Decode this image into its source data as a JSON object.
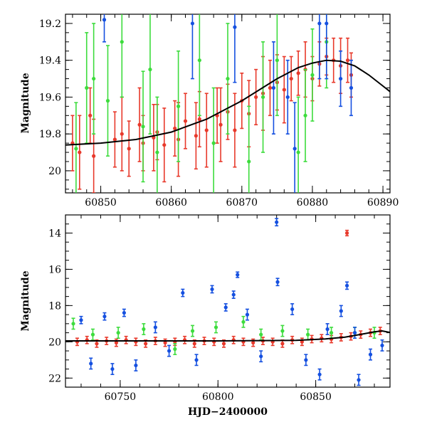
{
  "colors": {
    "red": "#e8392b",
    "green": "#3ddc3d",
    "blue": "#1550e0",
    "model": "#000000"
  },
  "chart_data": [
    {
      "type": "scatter",
      "title": "",
      "xlabel": "",
      "ylabel": "Magnitude",
      "xlim": [
        60845,
        60891
      ],
      "ylim": [
        20.12,
        19.15
      ],
      "y_inverted": true,
      "xticks": [
        60850,
        60860,
        60870,
        60880,
        60890
      ],
      "yticks": [
        19.2,
        19.4,
        19.6,
        19.8,
        20
      ],
      "xtick_labels": [
        "60850",
        "60860",
        "60870",
        "60880",
        "60890"
      ],
      "ytick_labels": [
        "19.2",
        "19.4",
        "19.6",
        "19.8",
        "20"
      ],
      "series": [
        {
          "color": "red",
          "points": [
            [
              60846,
              19.85,
              0.15
            ],
            [
              60847,
              19.9,
              0.2
            ],
            [
              60848.5,
              19.7,
              0.15
            ],
            [
              60849,
              19.92,
              0.2
            ],
            [
              60852,
              19.83,
              0.15
            ],
            [
              60853,
              19.8,
              0.2
            ],
            [
              60854,
              19.88,
              0.15
            ],
            [
              60855.5,
              19.75,
              0.2
            ],
            [
              60856,
              19.85,
              0.15
            ],
            [
              60857.5,
              19.82,
              0.18
            ],
            [
              60858,
              19.79,
              0.15
            ],
            [
              60859,
              19.86,
              0.2
            ],
            [
              60860.5,
              19.77,
              0.15
            ],
            [
              60861,
              19.83,
              0.2
            ],
            [
              60862,
              19.73,
              0.15
            ],
            [
              60863.5,
              19.81,
              0.18
            ],
            [
              60864,
              19.72,
              0.15
            ],
            [
              60865,
              19.78,
              0.2
            ],
            [
              60866.5,
              19.7,
              0.15
            ],
            [
              60867,
              19.75,
              0.2
            ],
            [
              60868,
              19.68,
              0.15
            ],
            [
              60869,
              19.78,
              0.2
            ],
            [
              60870,
              19.62,
              0.15
            ],
            [
              60871,
              19.69,
              0.18
            ],
            [
              60872,
              19.6,
              0.15
            ],
            [
              60873,
              19.58,
              0.2
            ],
            [
              60874,
              19.55,
              0.15
            ],
            [
              60875,
              19.52,
              0.15
            ],
            [
              60876,
              19.56,
              0.18
            ],
            [
              60877,
              19.5,
              0.12
            ],
            [
              60878,
              19.47,
              0.12
            ],
            [
              60879,
              19.45,
              0.15
            ],
            [
              60880,
              19.5,
              0.12
            ],
            [
              60881,
              19.42,
              0.12
            ],
            [
              60882,
              19.38,
              0.1
            ],
            [
              60883,
              19.4,
              0.12
            ],
            [
              60884,
              19.43,
              0.15
            ],
            [
              60885,
              19.4,
              0.12
            ],
            [
              60885.5,
              19.48,
              0.12
            ]
          ]
        },
        {
          "color": "green",
          "points": [
            [
              60846.5,
              19.88,
              0.25
            ],
            [
              60848,
              19.55,
              0.3
            ],
            [
              60849,
              19.5,
              0.3
            ],
            [
              60851,
              19.62,
              0.3
            ],
            [
              60853,
              19.3,
              0.3
            ],
            [
              60856,
              19.76,
              0.3
            ],
            [
              60857,
              19.45,
              0.35
            ],
            [
              60858,
              19.9,
              0.3
            ],
            [
              60861,
              19.65,
              0.3
            ],
            [
              60864,
              19.4,
              0.3
            ],
            [
              60866,
              19.85,
              0.3
            ],
            [
              60868,
              19.5,
              0.3
            ],
            [
              60871,
              19.95,
              0.3
            ],
            [
              60873,
              19.6,
              0.3
            ],
            [
              60875,
              19.4,
              0.3
            ],
            [
              60878,
              19.9,
              0.3
            ],
            [
              60879,
              19.7,
              0.25
            ],
            [
              60880,
              19.48,
              0.25
            ],
            [
              60882,
              19.3,
              0.25
            ]
          ]
        },
        {
          "color": "blue",
          "points": [
            [
              60850.5,
              19.18,
              0.12
            ],
            [
              60863,
              19.2,
              0.3
            ],
            [
              60869,
              19.22,
              0.3
            ],
            [
              60874.5,
              19.55,
              0.25
            ],
            [
              60876.5,
              19.6,
              0.2
            ],
            [
              60877.5,
              19.88,
              0.25
            ],
            [
              60881,
              19.2,
              0.3
            ],
            [
              60882,
              19.2,
              0.3
            ],
            [
              60884,
              19.5,
              0.15
            ],
            [
              60885.5,
              19.55,
              0.15
            ]
          ]
        }
      ],
      "model_line": [
        [
          60845,
          19.86
        ],
        [
          60850,
          19.85
        ],
        [
          60855,
          19.83
        ],
        [
          60860,
          19.79
        ],
        [
          60865,
          19.72
        ],
        [
          60870,
          19.62
        ],
        [
          60875,
          19.5
        ],
        [
          60878,
          19.44
        ],
        [
          60880,
          19.415
        ],
        [
          60882,
          19.4
        ],
        [
          60884,
          19.405
        ],
        [
          60886,
          19.43
        ],
        [
          60888,
          19.48
        ],
        [
          60890,
          19.54
        ],
        [
          60891,
          19.57
        ]
      ]
    },
    {
      "type": "scatter",
      "title": "",
      "xlabel": "HJD−2400000",
      "ylabel": "Magnitude",
      "xlim": [
        60722,
        60888
      ],
      "ylim": [
        22.5,
        13.0
      ],
      "y_inverted": true,
      "xticks": [
        60750,
        60800,
        60850
      ],
      "yticks": [
        14,
        16,
        18,
        20,
        22
      ],
      "xtick_labels": [
        "60750",
        "60800",
        "60850"
      ],
      "ytick_labels": [
        "14",
        "16",
        "18",
        "20",
        "22"
      ],
      "series": [
        {
          "color": "red",
          "points": [
            [
              60728,
              20.0,
              0.2
            ],
            [
              60733,
              19.9,
              0.2
            ],
            [
              60738,
              20.1,
              0.2
            ],
            [
              60743,
              19.95,
              0.2
            ],
            [
              60748,
              20.05,
              0.2
            ],
            [
              60753,
              19.9,
              0.2
            ],
            [
              60758,
              20.0,
              0.2
            ],
            [
              60763,
              20.1,
              0.2
            ],
            [
              60768,
              19.95,
              0.2
            ],
            [
              60773,
              20.05,
              0.2
            ],
            [
              60778,
              20.0,
              0.2
            ],
            [
              60783,
              19.9,
              0.2
            ],
            [
              60788,
              20.1,
              0.2
            ],
            [
              60793,
              19.95,
              0.2
            ],
            [
              60798,
              20.0,
              0.2
            ],
            [
              60803,
              20.1,
              0.2
            ],
            [
              60808,
              19.9,
              0.2
            ],
            [
              60813,
              20.0,
              0.2
            ],
            [
              60818,
              20.05,
              0.2
            ],
            [
              60823,
              19.95,
              0.2
            ],
            [
              60828,
              20.0,
              0.2
            ],
            [
              60833,
              20.1,
              0.2
            ],
            [
              60838,
              19.9,
              0.2
            ],
            [
              60843,
              20.0,
              0.2
            ],
            [
              60848,
              19.85,
              0.2
            ],
            [
              60853,
              19.8,
              0.2
            ],
            [
              60858,
              19.85,
              0.2
            ],
            [
              60863,
              19.75,
              0.2
            ],
            [
              60866,
              14.0,
              0.15
            ],
            [
              60868,
              19.7,
              0.2
            ],
            [
              60873,
              19.6,
              0.2
            ],
            [
              60878,
              19.5,
              0.2
            ],
            [
              60883,
              19.4,
              0.2
            ]
          ]
        },
        {
          "color": "green",
          "points": [
            [
              60726,
              19.0,
              0.3
            ],
            [
              60736,
              19.6,
              0.3
            ],
            [
              60749,
              19.5,
              0.3
            ],
            [
              60762,
              19.3,
              0.3
            ],
            [
              60778,
              20.4,
              0.3
            ],
            [
              60787,
              19.4,
              0.3
            ],
            [
              60799,
              19.2,
              0.3
            ],
            [
              60813,
              18.9,
              0.3
            ],
            [
              60822,
              19.6,
              0.3
            ],
            [
              60833,
              19.4,
              0.3
            ],
            [
              60846,
              19.6,
              0.3
            ],
            [
              60858,
              19.5,
              0.3
            ],
            [
              60870,
              19.5,
              0.3
            ],
            [
              60880,
              19.5,
              0.3
            ]
          ]
        },
        {
          "color": "blue",
          "points": [
            [
              60730,
              18.8,
              0.2
            ],
            [
              60735,
              21.2,
              0.3
            ],
            [
              60742,
              18.6,
              0.2
            ],
            [
              60746,
              21.5,
              0.3
            ],
            [
              60752,
              18.4,
              0.2
            ],
            [
              60758,
              21.3,
              0.3
            ],
            [
              60768,
              19.2,
              0.3
            ],
            [
              60775,
              20.5,
              0.3
            ],
            [
              60782,
              17.3,
              0.2
            ],
            [
              60789,
              21.0,
              0.3
            ],
            [
              60797,
              17.1,
              0.2
            ],
            [
              60804,
              18.1,
              0.2
            ],
            [
              60808,
              17.4,
              0.2
            ],
            [
              60810,
              16.3,
              0.15
            ],
            [
              60815,
              18.5,
              0.3
            ],
            [
              60822,
              20.8,
              0.3
            ],
            [
              60830,
              13.4,
              0.2
            ],
            [
              60830.5,
              16.7,
              0.2
            ],
            [
              60838,
              18.2,
              0.3
            ],
            [
              60845,
              21.0,
              0.3
            ],
            [
              60852,
              21.8,
              0.3
            ],
            [
              60856,
              19.3,
              0.3
            ],
            [
              60863,
              18.3,
              0.3
            ],
            [
              60866,
              16.9,
              0.2
            ],
            [
              60870,
              19.5,
              0.3
            ],
            [
              60872,
              22.1,
              0.3
            ],
            [
              60878,
              20.7,
              0.3
            ],
            [
              60884,
              20.2,
              0.3
            ]
          ]
        }
      ],
      "model_line": [
        [
          60722,
          19.95
        ],
        [
          60760,
          19.95
        ],
        [
          60800,
          19.95
        ],
        [
          60840,
          19.92
        ],
        [
          60855,
          19.84
        ],
        [
          60865,
          19.74
        ],
        [
          60875,
          19.55
        ],
        [
          60880,
          19.45
        ],
        [
          60884,
          19.4
        ],
        [
          60888,
          19.48
        ]
      ]
    }
  ]
}
